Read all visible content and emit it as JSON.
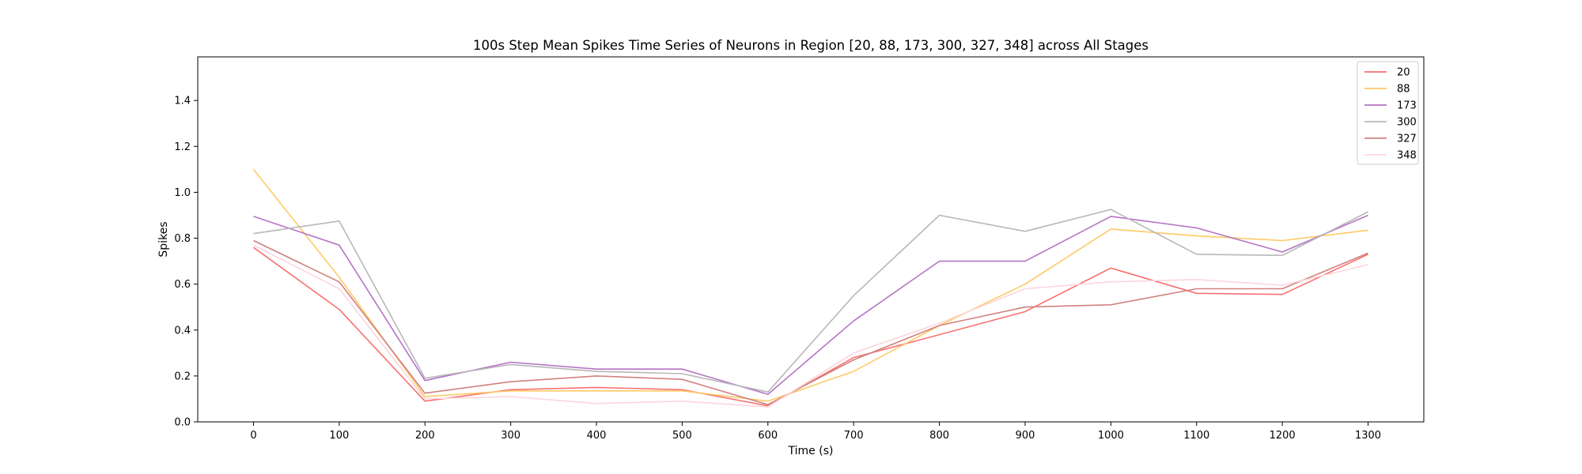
{
  "chart_data": {
    "type": "line",
    "title": "100s Step Mean Spikes Time Series of Neurons in Region [20, 88, 173, 300, 327, 348] across All Stages",
    "xlabel": "Time (s)",
    "ylabel": "Spikes",
    "x": [
      0,
      100,
      200,
      300,
      400,
      500,
      600,
      700,
      800,
      900,
      1000,
      1100,
      1200,
      1300
    ],
    "xticks": [
      "0",
      "100",
      "200",
      "300",
      "400",
      "500",
      "600",
      "700",
      "800",
      "900",
      "1000",
      "1100",
      "1200",
      "1300"
    ],
    "xlim": [
      -65,
      1365
    ],
    "ylim": [
      0,
      1.59
    ],
    "yticks": [
      "0.0",
      "0.2",
      "0.4",
      "0.6",
      "0.8",
      "1.0",
      "1.2",
      "1.4"
    ],
    "grid": false,
    "legend_position": "top-right",
    "series": [
      {
        "name": "20",
        "color": "#f87171",
        "values": [
          0.76,
          0.49,
          0.09,
          0.14,
          0.15,
          0.14,
          0.07,
          0.28,
          0.38,
          0.48,
          0.67,
          0.56,
          0.555,
          0.73
        ]
      },
      {
        "name": "88",
        "color": "#ffc966",
        "values": [
          1.1,
          0.63,
          0.11,
          0.135,
          0.135,
          0.135,
          0.09,
          0.22,
          0.42,
          0.6,
          0.84,
          0.81,
          0.79,
          0.835
        ]
      },
      {
        "name": "173",
        "color": "#b573c5",
        "values": [
          0.895,
          0.77,
          0.18,
          0.26,
          0.23,
          0.23,
          0.12,
          0.44,
          0.7,
          0.7,
          0.895,
          0.845,
          0.74,
          0.9
        ]
      },
      {
        "name": "300",
        "color": "#b9b6b9",
        "values": [
          0.82,
          0.875,
          0.19,
          0.25,
          0.22,
          0.21,
          0.13,
          0.55,
          0.9,
          0.83,
          0.925,
          0.73,
          0.725,
          0.915
        ]
      },
      {
        "name": "327",
        "color": "#d0827e",
        "values": [
          0.79,
          0.61,
          0.125,
          0.175,
          0.2,
          0.185,
          0.075,
          0.27,
          0.42,
          0.5,
          0.51,
          0.58,
          0.58,
          0.735
        ]
      },
      {
        "name": "348",
        "color": "#fcd6dc",
        "values": [
          0.77,
          0.58,
          0.1,
          0.11,
          0.08,
          0.09,
          0.065,
          0.3,
          0.43,
          0.58,
          0.61,
          0.62,
          0.595,
          0.685
        ]
      }
    ]
  }
}
